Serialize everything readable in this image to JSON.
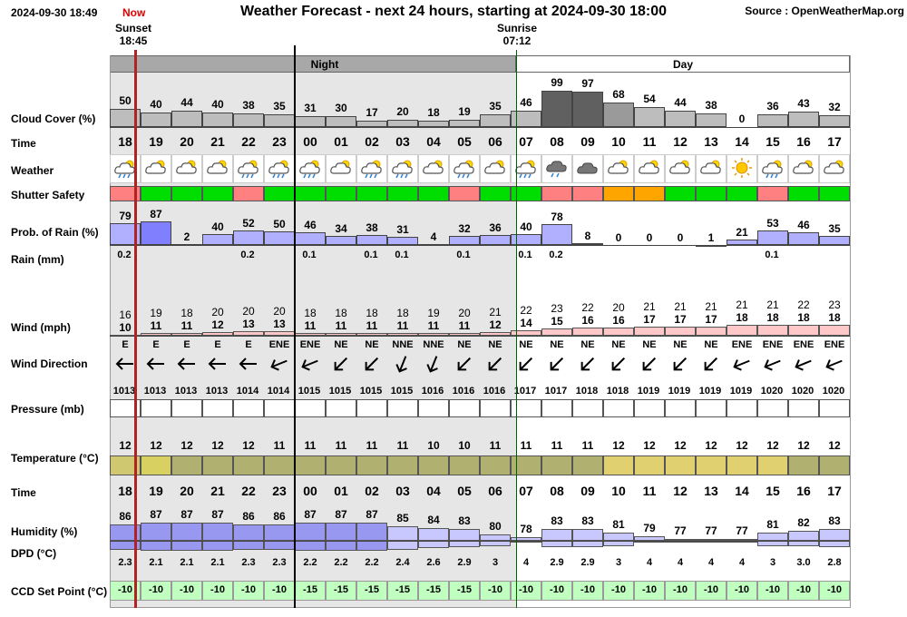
{
  "header": {
    "timestamp": "2024-09-30 18:49",
    "now_label": "Now",
    "title": "Weather Forecast - next 24 hours, starting at 2024-09-30 18:00",
    "source": "Source : OpenWeatherMap.org",
    "sunset_label": "Sunset",
    "sunset_time": "18:45",
    "sunrise_label": "Sunrise",
    "sunrise_time": "07:12",
    "night_label": "Night",
    "day_label": "Day"
  },
  "labels": {
    "cloud": "Cloud Cover (%)",
    "time": "Time",
    "weather": "Weather",
    "shutter": "Shutter Safety",
    "rain_prob": "Prob. of Rain (%)",
    "rain_mm": "Rain (mm)",
    "wind": "Wind (mph)",
    "wind_dir": "Wind Direction",
    "pressure": "Pressure (mb)",
    "temperature": "Temperature (°C)",
    "time2": "Time",
    "humidity": "Humidity (%)",
    "dpd": "DPD (°C)",
    "ccd": "CCD Set Point (°C)"
  },
  "colors": {
    "night_band": "#a8a8a8",
    "night_shade": "#e6e6e6",
    "now_line": "#b22222",
    "safe_green": "#00dd00",
    "unsafe_red": "#ff8080",
    "marginal_orange": "#ffa500",
    "rain_bar": "#b0b0ff",
    "wind_bar": "#ffc8c8",
    "humidity_bar": "#c8c8ff",
    "ccd_green": "#c0ffc0"
  },
  "hours": [
    "18",
    "19",
    "20",
    "21",
    "22",
    "23",
    "00",
    "01",
    "02",
    "03",
    "04",
    "05",
    "06",
    "07",
    "08",
    "09",
    "10",
    "11",
    "12",
    "13",
    "14",
    "15",
    "16",
    "17"
  ],
  "cloud_cover": [
    50,
    40,
    44,
    40,
    38,
    35,
    31,
    30,
    17,
    20,
    18,
    19,
    35,
    46,
    99,
    97,
    68,
    54,
    44,
    38,
    0,
    36,
    43,
    32
  ],
  "weather_icons": [
    "rain-cloud-icon",
    "cloud-icon",
    "cloud-icon",
    "cloud-icon",
    "rain-cloud-icon",
    "rain-cloud-icon",
    "rain-cloud-icon",
    "cloud-icon",
    "rain-cloud-icon",
    "rain-cloud-icon",
    "cloud-icon",
    "rain-cloud-icon",
    "cloud-icon",
    "rain-cloud-icon",
    "rain-cloud-icon",
    "cloud-icon",
    "partly-cloudy-icon",
    "partly-cloudy-icon",
    "partly-cloudy-icon",
    "partly-cloudy-icon",
    "sun-icon",
    "rain-cloud-icon",
    "partly-cloudy-icon",
    "partly-cloudy-icon"
  ],
  "shutter_safety": [
    "red",
    "green",
    "green",
    "green",
    "red",
    "green",
    "green",
    "green",
    "green",
    "green",
    "green",
    "red",
    "green",
    "green",
    "red",
    "red",
    "orange",
    "orange",
    "green",
    "green",
    "green",
    "red",
    "green",
    "green"
  ],
  "rain_probability": [
    79,
    87,
    2,
    40,
    52,
    50,
    46,
    34,
    38,
    31,
    4,
    32,
    36,
    40,
    78,
    8,
    0,
    0,
    0,
    1,
    21,
    53,
    46,
    35
  ],
  "rain_mm": [
    "0.2",
    "",
    "",
    "",
    "0.2",
    "",
    "0.1",
    "",
    "0.1",
    "0.1",
    "",
    "0.1",
    "",
    "0.1",
    "0.2",
    "",
    "",
    "",
    "",
    "",
    "",
    "0.1",
    "",
    ""
  ],
  "wind_gust": [
    16,
    19,
    18,
    20,
    20,
    20,
    18,
    18,
    18,
    18,
    19,
    20,
    21,
    22,
    23,
    22,
    20,
    21,
    21,
    21,
    21,
    21,
    22,
    23
  ],
  "wind_speed": [
    10,
    11,
    11,
    12,
    13,
    13,
    11,
    11,
    11,
    11,
    11,
    11,
    12,
    14,
    15,
    16,
    16,
    17,
    17,
    17,
    18,
    18,
    18,
    18
  ],
  "wind_direction": [
    "E",
    "E",
    "E",
    "E",
    "E",
    "ENE",
    "ENE",
    "NE",
    "NE",
    "NNE",
    "NNE",
    "NE",
    "NE",
    "NE",
    "NE",
    "NE",
    "NE",
    "NE",
    "NE",
    "NE",
    "ENE",
    "ENE",
    "ENE",
    "ENE"
  ],
  "wind_angle": [
    90,
    90,
    90,
    90,
    90,
    68,
    68,
    45,
    45,
    22,
    22,
    45,
    45,
    45,
    45,
    45,
    45,
    45,
    45,
    45,
    68,
    68,
    68,
    68
  ],
  "pressure": [
    1013,
    1013,
    1013,
    1013,
    1014,
    1014,
    1015,
    1015,
    1015,
    1015,
    1016,
    1016,
    1016,
    1017,
    1017,
    1018,
    1018,
    1019,
    1019,
    1019,
    1019,
    1020,
    1020,
    1020
  ],
  "temperature": [
    12,
    12,
    12,
    12,
    12,
    11,
    11,
    11,
    11,
    11,
    10,
    10,
    11,
    11,
    11,
    11,
    12,
    12,
    12,
    12,
    12,
    12,
    12,
    12
  ],
  "humidity": [
    86,
    87,
    87,
    87,
    86,
    86,
    87,
    87,
    87,
    85,
    84,
    83,
    80,
    78,
    83,
    83,
    81,
    79,
    77,
    77,
    77,
    81,
    82,
    83
  ],
  "dpd": [
    "2.3",
    "2.1",
    "2.1",
    "2.1",
    "2.3",
    "2.3",
    "2.2",
    "2.2",
    "2.2",
    "2.4",
    "2.6",
    "2.9",
    "3",
    "4",
    "2.9",
    "2.9",
    "3",
    "4",
    "4",
    "4",
    "4",
    "3",
    "3.0",
    "2.8"
  ],
  "ccd_set_point": [
    -10,
    -10,
    -10,
    -10,
    -10,
    -10,
    -15,
    -15,
    -15,
    -15,
    -15,
    -15,
    -10,
    -10,
    -10,
    -10,
    -10,
    -10,
    -10,
    -10,
    -10,
    -10,
    -10,
    -10
  ]
}
